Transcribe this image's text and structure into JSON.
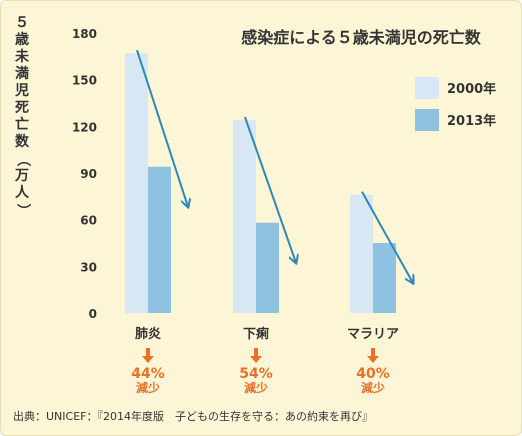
{
  "chart_data": {
    "type": "bar",
    "title": "感染症による５歳未満児の死亡数",
    "ylabel": "５歳未満児死亡数（万人）",
    "ylim": [
      0,
      180
    ],
    "yticks": [
      0,
      30,
      60,
      90,
      120,
      150,
      180
    ],
    "categories": [
      "肺炎",
      "下痢",
      "マラリア"
    ],
    "series": [
      {
        "name": "2000年",
        "values": [
          167,
          124,
          76
        ]
      },
      {
        "name": "2013年",
        "values": [
          94,
          58,
          45
        ]
      }
    ],
    "reductions": [
      {
        "percent": "44%",
        "label": "減少"
      },
      {
        "percent": "54%",
        "label": "減少"
      },
      {
        "percent": "40%",
        "label": "減少"
      }
    ],
    "colors": {
      "2000年": "#d7e8f4",
      "2013年": "#8fc2e2",
      "trend_arrow": "#2f87b5",
      "reduction": "#e8702a"
    },
    "legend_position": "right",
    "grid": false
  },
  "source": "出典：UNICEF：『2014年度版　子どもの生存を守る：あの約束を再び』"
}
